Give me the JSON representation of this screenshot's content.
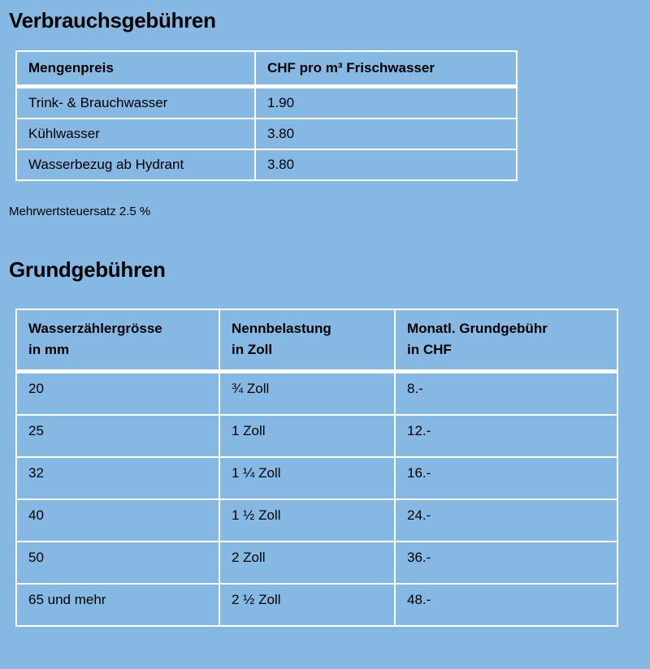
{
  "section1": {
    "title": "Verbrauchsgebühren",
    "headers": [
      "Mengenpreis",
      "CHF pro m³ Frischwasser"
    ],
    "rows": [
      [
        "Trink- & Brauchwasser",
        "1.90"
      ],
      [
        "Kühlwasser",
        "3.80"
      ],
      [
        "Wasserbezug ab Hydrant",
        "3.80"
      ]
    ],
    "note": "Mehrwertsteuersatz 2.5 %"
  },
  "section2": {
    "title": "Grundgebühren",
    "headers": [
      [
        "Wasserzählergrösse",
        "in mm"
      ],
      [
        "Nennbelastung",
        "in Zoll"
      ],
      [
        "Monatl. Grundgebühr",
        "in CHF"
      ]
    ],
    "rows": [
      [
        "20",
        "¾ Zoll",
        "8.-"
      ],
      [
        "25",
        "1 Zoll",
        "12.-"
      ],
      [
        "32",
        "1 ¼ Zoll",
        "16.-"
      ],
      [
        "40",
        "1 ½ Zoll",
        "24.-"
      ],
      [
        "50",
        "2 Zoll",
        "36.-"
      ],
      [
        "65 und mehr",
        "2 ½ Zoll",
        "48.-"
      ]
    ]
  },
  "colors": {
    "background": "#86b8e4",
    "border": "#ffffff"
  }
}
